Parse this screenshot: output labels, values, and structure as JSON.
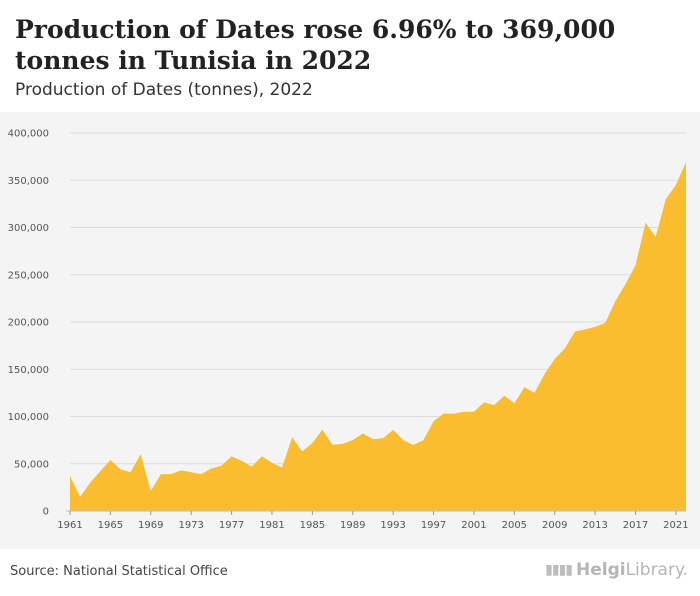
{
  "header": {
    "title": "Production of Dates rose 6.96% to 369,000 tonnes in Tunisia in 2022",
    "subtitle": "Production of Dates (tonnes), 2022"
  },
  "footer": {
    "source": "Source: National Statistical Office",
    "logo_strong": "Helgi",
    "logo_rest": "Library."
  },
  "colors": {
    "area": "#f9bd2f",
    "grid": "#dcdcdc",
    "axis_text": "#555555"
  },
  "chart_data": {
    "type": "area",
    "title": "Production of Dates (tonnes), 2022",
    "xlabel": "",
    "ylabel": "",
    "x": [
      1961,
      1962,
      1963,
      1964,
      1965,
      1966,
      1967,
      1968,
      1969,
      1970,
      1971,
      1972,
      1973,
      1974,
      1975,
      1976,
      1977,
      1978,
      1979,
      1980,
      1981,
      1982,
      1983,
      1984,
      1985,
      1986,
      1987,
      1988,
      1989,
      1990,
      1991,
      1992,
      1993,
      1994,
      1995,
      1996,
      1997,
      1998,
      1999,
      2000,
      2001,
      2002,
      2003,
      2004,
      2005,
      2006,
      2007,
      2008,
      2009,
      2010,
      2011,
      2012,
      2013,
      2014,
      2015,
      2016,
      2017,
      2018,
      2019,
      2020,
      2021,
      2022
    ],
    "values": [
      37000,
      15000,
      30000,
      42000,
      54000,
      44000,
      41000,
      60000,
      21000,
      39000,
      39000,
      43000,
      41000,
      39000,
      45000,
      48000,
      58000,
      53000,
      47000,
      58000,
      51000,
      46000,
      78000,
      63000,
      72000,
      86000,
      70000,
      71000,
      75000,
      82000,
      76000,
      77000,
      86000,
      75000,
      70000,
      75000,
      95000,
      103000,
      103000,
      105000,
      105000,
      115000,
      112000,
      122000,
      114000,
      131000,
      125000,
      145000,
      161000,
      172000,
      190000,
      192000,
      195000,
      199000,
      222000,
      240000,
      260000,
      305000,
      290000,
      330000,
      345000,
      369000
    ],
    "xticks": [
      "1961",
      "1965",
      "1969",
      "1973",
      "1977",
      "1981",
      "1985",
      "1989",
      "1993",
      "1997",
      "2001",
      "2005",
      "2009",
      "2013",
      "2017",
      "2021"
    ],
    "yticks": [
      "0",
      "50,000",
      "100,000",
      "150,000",
      "200,000",
      "250,000",
      "300,000",
      "350,000",
      "400,000"
    ],
    "ylim": [
      0,
      400000
    ],
    "grid": true,
    "legend": "none"
  }
}
